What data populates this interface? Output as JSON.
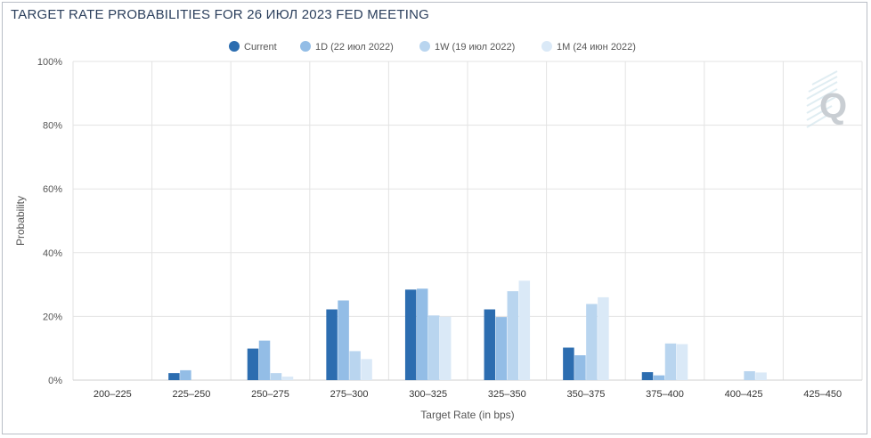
{
  "title": "TARGET RATE PROBABILITIES FOR 26 ИЮЛ 2023 FED MEETING",
  "colors": {
    "current": "#2c6db0",
    "d1": "#93bde6",
    "w1": "#b9d5ef",
    "m1": "#dae9f7",
    "grid": "#e3e3e3",
    "title": "#2b3f5c"
  },
  "chart_data": {
    "type": "bar",
    "title": "TARGET RATE PROBABILITIES FOR 26 ИЮЛ 2023 FED MEETING",
    "xlabel": "Target Rate (in bps)",
    "ylabel": "Probability",
    "ylim": [
      0,
      100
    ],
    "yticks": [
      "0%",
      "20%",
      "40%",
      "60%",
      "80%",
      "100%"
    ],
    "grid": true,
    "legend_position": "top-center",
    "categories": [
      "200-225",
      "225-250",
      "250-275",
      "275-300",
      "300-325",
      "325-350",
      "350-375",
      "375-400",
      "400-425",
      "425-450"
    ],
    "series": [
      {
        "name": "Current",
        "color": "#2c6db0",
        "values": [
          0,
          2.2,
          9.9,
          22.2,
          28.4,
          22.2,
          10.2,
          2.5,
          0,
          0
        ]
      },
      {
        "name": "1D (22 июл 2022)",
        "color": "#93bde6",
        "values": [
          0,
          3.1,
          12.4,
          25.0,
          28.7,
          19.8,
          7.8,
          1.5,
          0,
          0
        ]
      },
      {
        "name": "1W (19 июл 2022)",
        "color": "#b9d5ef",
        "values": [
          0,
          0,
          2.2,
          9.1,
          20.3,
          27.9,
          23.9,
          11.5,
          2.8,
          0
        ]
      },
      {
        "name": "1M (24 июн 2022)",
        "color": "#dae9f7",
        "values": [
          0,
          0,
          1.1,
          6.6,
          19.9,
          31.2,
          26.0,
          11.3,
          2.4,
          0
        ]
      }
    ]
  },
  "watermark_icon": "quikstrike-q-logo-icon"
}
